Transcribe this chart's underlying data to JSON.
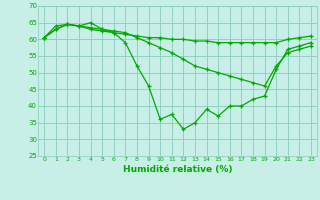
{
  "title": "",
  "xlabel": "Humidité relative (%)",
  "ylabel": "",
  "xlim": [
    -0.5,
    23.5
  ],
  "ylim": [
    25,
    70
  ],
  "yticks": [
    25,
    30,
    35,
    40,
    45,
    50,
    55,
    60,
    65,
    70
  ],
  "xticks": [
    0,
    1,
    2,
    3,
    4,
    5,
    6,
    7,
    8,
    9,
    10,
    11,
    12,
    13,
    14,
    15,
    16,
    17,
    18,
    19,
    20,
    21,
    22,
    23
  ],
  "background_color": "#c8eee8",
  "grid_color": "#88ccbb",
  "line_color": "#00aa00",
  "line1": [
    60.5,
    64,
    64.5,
    64,
    65,
    63,
    62,
    59,
    52,
    46,
    36,
    37.5,
    33,
    35,
    39,
    37,
    40,
    40,
    42,
    43,
    51,
    57,
    58,
    59
  ],
  "line2": [
    60.5,
    63,
    64.5,
    64,
    63,
    62.5,
    62,
    61.5,
    61,
    60.5,
    60.5,
    60,
    60,
    59.5,
    59.5,
    59,
    59,
    59,
    59,
    59,
    59,
    60,
    60.5,
    61
  ],
  "line3": [
    60.5,
    63,
    64.5,
    64,
    63.5,
    63,
    62.5,
    62,
    60.5,
    59,
    57.5,
    56,
    54,
    52,
    51,
    50,
    49,
    48,
    47,
    46,
    52,
    56,
    57,
    58
  ]
}
